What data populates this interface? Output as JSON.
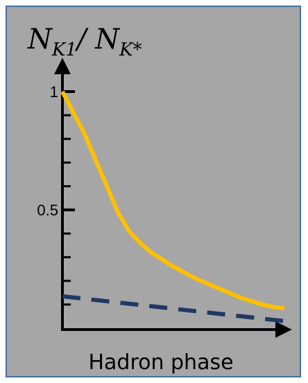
{
  "chart_data": {
    "type": "line",
    "title": "",
    "ylabel": {
      "symbol": "N",
      "num_sub": "K1",
      "slash": "/ ",
      "den_sub": "K*"
    },
    "xlabel": "Hadron phase",
    "ylim": [
      0,
      1
    ],
    "xlim": [
      0,
      1
    ],
    "yticks": [
      {
        "value": 1,
        "label": "1"
      },
      {
        "value": 0.5,
        "label": "0.5"
      }
    ],
    "minor_ytick_step": 0.1,
    "grid": false,
    "legend": "none",
    "series": [
      {
        "style": "solid",
        "color": "#ffc000",
        "x": [
          0,
          0.05,
          0.1,
          0.15,
          0.2,
          0.25,
          0.3,
          0.35,
          0.4,
          0.45,
          0.5,
          0.55,
          0.6,
          0.65,
          0.7,
          0.75,
          0.8,
          0.85,
          0.9,
          0.95,
          1.0
        ],
        "y": [
          1.0,
          0.91,
          0.82,
          0.71,
          0.6,
          0.49,
          0.41,
          0.36,
          0.32,
          0.29,
          0.26,
          0.235,
          0.21,
          0.19,
          0.17,
          0.15,
          0.13,
          0.115,
          0.1,
          0.09,
          0.085
        ]
      },
      {
        "style": "dashed",
        "color": "#1f3864",
        "x": [
          0,
          1.0
        ],
        "y": [
          0.135,
          0.03
        ]
      }
    ]
  }
}
